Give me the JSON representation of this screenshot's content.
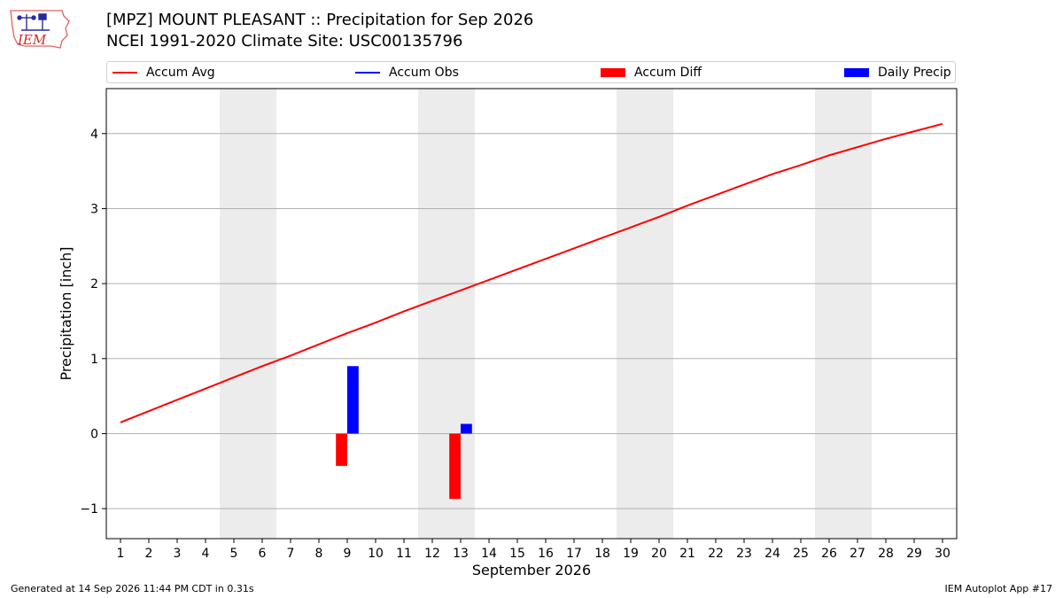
{
  "header": {
    "title": "[MPZ] MOUNT PLEASANT :: Precipitation for Sep 2026",
    "subtitle": "NCEI 1991-2020 Climate Site: USC00135796",
    "logo_text": "IEM"
  },
  "footer": {
    "left": "Generated at 14 Sep 2026 11:44 PM CDT in 0.31s",
    "right": "IEM Autoplot App #17"
  },
  "colors": {
    "avg": "#ff0000",
    "obs": "#0000ff",
    "diff": "#ff0000",
    "daily": "#0000ff",
    "weekend": "#ececec",
    "grid": "#b0b0b0"
  },
  "chart_data": {
    "type": "bar",
    "xlabel": "September 2026",
    "ylabel": "Precipitation [inch]",
    "xlim": [
      0.5,
      30.5
    ],
    "ylim": [
      -1.4,
      4.6
    ],
    "grid": "horizontal",
    "legend_position": "top",
    "legend": [
      {
        "label": "Accum Avg",
        "kind": "line",
        "color": "#ff0000"
      },
      {
        "label": "Accum Obs",
        "kind": "line",
        "color": "#0000ff"
      },
      {
        "label": "Accum Diff",
        "kind": "patch",
        "color": "#ff0000"
      },
      {
        "label": "Daily Precip",
        "kind": "patch",
        "color": "#0000ff"
      }
    ],
    "x": [
      1,
      2,
      3,
      4,
      5,
      6,
      7,
      8,
      9,
      10,
      11,
      12,
      13,
      14,
      15,
      16,
      17,
      18,
      19,
      20,
      21,
      22,
      23,
      24,
      25,
      26,
      27,
      28,
      29,
      30
    ],
    "xtick_labels": [
      "1",
      "2",
      "3",
      "4",
      "5",
      "6",
      "7",
      "8",
      "9",
      "10",
      "11",
      "12",
      "13",
      "14",
      "15",
      "16",
      "17",
      "18",
      "19",
      "20",
      "21",
      "22",
      "23",
      "24",
      "25",
      "26",
      "27",
      "28",
      "29",
      "30"
    ],
    "yticks": [
      -1,
      0,
      1,
      2,
      3,
      4
    ],
    "ytick_labels": [
      "−1",
      "0",
      "1",
      "2",
      "3",
      "4"
    ],
    "weekend_shading": [
      [
        4.5,
        6.5
      ],
      [
        11.5,
        13.5
      ],
      [
        18.5,
        20.5
      ],
      [
        25.5,
        27.5
      ]
    ],
    "series": [
      {
        "name": "Accum Avg",
        "type": "line",
        "color": "#ff0000",
        "values": [
          0.15,
          0.3,
          0.45,
          0.6,
          0.75,
          0.9,
          1.04,
          1.19,
          1.34,
          1.48,
          1.63,
          1.77,
          1.91,
          2.05,
          2.19,
          2.33,
          2.47,
          2.61,
          2.75,
          2.89,
          3.04,
          3.18,
          3.32,
          3.46,
          3.58,
          3.71,
          3.82,
          3.93,
          4.03,
          4.13
        ]
      },
      {
        "name": "Accum Diff",
        "type": "bar",
        "color": "#ff0000",
        "offset": -0.2,
        "points": [
          {
            "x": 9,
            "y": -0.43
          },
          {
            "x": 13,
            "y": -0.87
          }
        ]
      },
      {
        "name": "Daily Precip",
        "type": "bar",
        "color": "#0000ff",
        "offset": 0.2,
        "points": [
          {
            "x": 9,
            "y": 0.9
          },
          {
            "x": 13,
            "y": 0.13
          }
        ]
      }
    ]
  }
}
